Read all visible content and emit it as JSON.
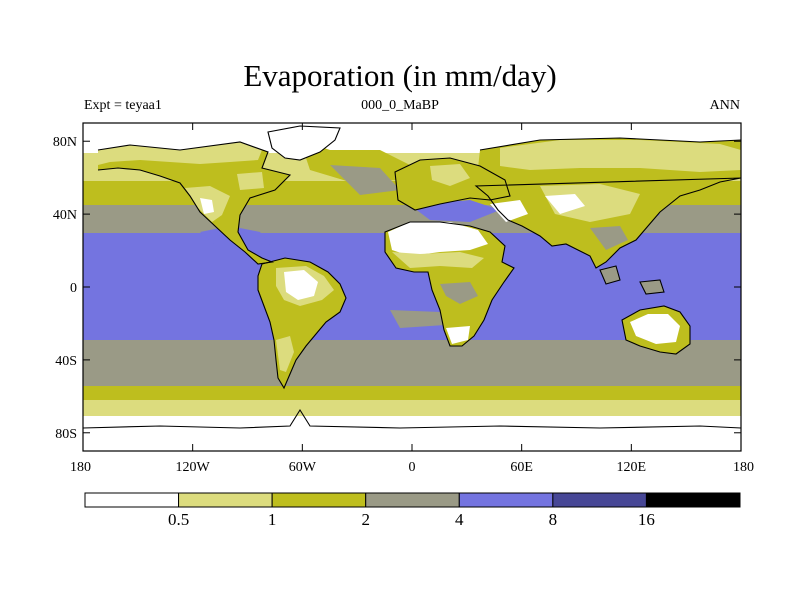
{
  "title": "Evaporation (in mm/day)",
  "left_label": "Expt = teyaa1",
  "center_label": "000_0_MaBP",
  "right_label": "ANN",
  "colors": {
    "band0": "#ffffff",
    "band1": "#dcdc7e",
    "band2": "#bebe1e",
    "band3": "#9a9a86",
    "band4": "#7474e0",
    "band5": "#474796",
    "band6": "#000000",
    "coast": "#000000"
  },
  "axes": {
    "lon_ticks": [
      {
        "value": -180,
        "label": "180"
      },
      {
        "value": -120,
        "label": "120W"
      },
      {
        "value": -60,
        "label": "60W"
      },
      {
        "value": 0,
        "label": "0"
      },
      {
        "value": 60,
        "label": "60E"
      },
      {
        "value": 120,
        "label": "120E"
      },
      {
        "value": 180,
        "label": "180"
      }
    ],
    "lat_ticks": [
      {
        "value": 80,
        "label": "80N"
      },
      {
        "value": 40,
        "label": "40N"
      },
      {
        "value": 0,
        "label": "0"
      },
      {
        "value": -40,
        "label": "40S"
      },
      {
        "value": -80,
        "label": "80S"
      }
    ],
    "lon_range": [
      -180,
      180
    ],
    "lat_range": [
      -90,
      90
    ]
  },
  "colorbar": {
    "levels": [
      "0.5",
      "1",
      "2",
      "4",
      "8",
      "16"
    ]
  }
}
